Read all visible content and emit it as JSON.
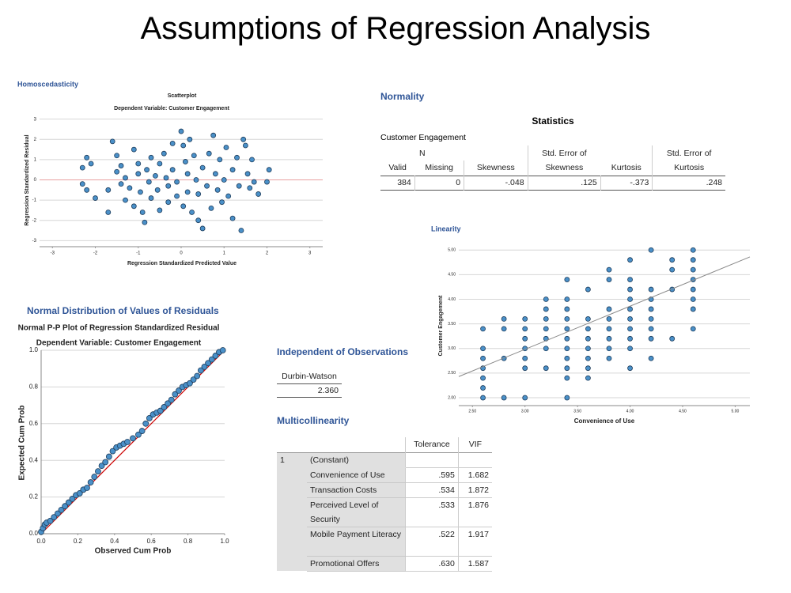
{
  "title": "Assumptions of Regression Analysis",
  "chart_data": [
    {
      "type": "scatter",
      "heading": "Homoscedasticity",
      "title": "Scatterplot",
      "subtitle": "Dependent Variable: Customer Engagement",
      "x_label": "Regression Standardized Predicted Value",
      "y_label": "Regression Standardized Residual",
      "color": "#4a90c8",
      "grid": true,
      "xlim": [
        -3.3,
        3.3
      ],
      "ylim": [
        -3.3,
        3.3
      ],
      "xticks": [
        -3,
        -2,
        -1,
        0,
        1,
        2,
        3
      ],
      "yticks": [
        -3,
        -2,
        -1,
        0,
        1,
        2,
        3
      ],
      "x": [
        -2.3,
        -2.3,
        -2.2,
        -2.1,
        -2.2,
        -2.0,
        -1.7,
        -1.7,
        -1.6,
        -1.5,
        -1.5,
        -1.4,
        -1.4,
        -1.3,
        -1.3,
        -1.2,
        -1.1,
        -1.1,
        -1.0,
        -1.0,
        -0.95,
        -0.9,
        -0.85,
        -0.8,
        -0.75,
        -0.7,
        -0.7,
        -0.6,
        -0.55,
        -0.5,
        -0.5,
        -0.4,
        -0.35,
        -0.3,
        -0.3,
        -0.2,
        -0.2,
        -0.1,
        -0.1,
        0,
        0.05,
        0.05,
        0.1,
        0.15,
        0.15,
        0.2,
        0.25,
        0.3,
        0.35,
        0.4,
        0.4,
        0.5,
        0.5,
        0.6,
        0.65,
        0.7,
        0.75,
        0.8,
        0.85,
        0.9,
        0.95,
        1.0,
        1.05,
        1.1,
        1.2,
        1.2,
        1.3,
        1.35,
        1.4,
        1.45,
        1.5,
        1.55,
        1.6,
        1.65,
        1.7,
        1.8,
        2.0,
        2.05
      ],
      "y": [
        0.6,
        -0.2,
        1.1,
        0.8,
        -0.5,
        -0.9,
        -0.5,
        -1.6,
        1.9,
        1.2,
        0.4,
        0.7,
        -0.2,
        0.1,
        -1.0,
        -0.4,
        1.5,
        -1.3,
        0.8,
        0.3,
        -0.6,
        -1.6,
        -2.1,
        0.5,
        -0.1,
        1.1,
        -0.9,
        0.2,
        -0.5,
        0.8,
        -1.5,
        1.3,
        0.1,
        -0.3,
        -1.1,
        1.8,
        0.5,
        -0.1,
        -0.8,
        2.4,
        1.7,
        -1.3,
        0.9,
        0.3,
        -0.6,
        2.0,
        -1.6,
        1.2,
        0.0,
        -0.7,
        -2.0,
        0.6,
        -2.4,
        -0.3,
        1.3,
        -1.4,
        2.2,
        0.3,
        -0.5,
        1.0,
        -1.1,
        0.0,
        1.6,
        -0.8,
        0.5,
        -1.9,
        1.1,
        -0.3,
        -2.5,
        2.0,
        1.7,
        0.3,
        -0.4,
        1.0,
        -0.1,
        -0.7,
        -0.1,
        0.5
      ]
    },
    {
      "type": "scatter",
      "heading": "Normal Distribution of Values of Residuals",
      "title": "Normal P-P Plot of Regression Standardized Residual",
      "subtitle": "Dependent Variable: Customer Engagement",
      "x_label": "Observed Cum Prob",
      "y_label": "Expected Cum Prob",
      "color": "#4a90c8",
      "grid": true,
      "reference_line": "diagonal",
      "reference_color": "#cc0000",
      "xlim": [
        0,
        1
      ],
      "ylim": [
        0,
        1
      ],
      "xticks": [
        {
          "value": 0,
          "label": "0.0"
        },
        {
          "value": 0.2,
          "label": "0.2"
        },
        {
          "value": 0.4,
          "label": "0.4"
        },
        {
          "value": 0.6,
          "label": "0.6"
        },
        {
          "value": 0.8,
          "label": "0.8"
        },
        {
          "value": 1,
          "label": "1.0"
        }
      ],
      "yticks": [
        {
          "value": 0,
          "label": "0.0"
        },
        {
          "value": 0.2,
          "label": "0.2"
        },
        {
          "value": 0.4,
          "label": "0.4"
        },
        {
          "value": 0.6,
          "label": "0.6"
        },
        {
          "value": 0.8,
          "label": "0.8"
        },
        {
          "value": 1,
          "label": "1.0"
        }
      ],
      "x": [
        0,
        0.01,
        0.02,
        0.03,
        0.05,
        0.07,
        0.09,
        0.11,
        0.13,
        0.15,
        0.17,
        0.19,
        0.21,
        0.23,
        0.25,
        0.27,
        0.29,
        0.31,
        0.33,
        0.35,
        0.37,
        0.39,
        0.41,
        0.43,
        0.45,
        0.47,
        0.5,
        0.53,
        0.55,
        0.57,
        0.59,
        0.61,
        0.63,
        0.65,
        0.67,
        0.69,
        0.71,
        0.73,
        0.75,
        0.77,
        0.79,
        0.81,
        0.83,
        0.85,
        0.87,
        0.89,
        0.91,
        0.93,
        0.95,
        0.97,
        0.99
      ],
      "y": [
        0.01,
        0.03,
        0.05,
        0.06,
        0.07,
        0.09,
        0.11,
        0.13,
        0.15,
        0.17,
        0.19,
        0.21,
        0.22,
        0.24,
        0.25,
        0.28,
        0.31,
        0.34,
        0.37,
        0.39,
        0.42,
        0.45,
        0.47,
        0.48,
        0.49,
        0.5,
        0.52,
        0.54,
        0.56,
        0.6,
        0.63,
        0.65,
        0.66,
        0.67,
        0.69,
        0.71,
        0.73,
        0.76,
        0.78,
        0.8,
        0.81,
        0.82,
        0.84,
        0.86,
        0.89,
        0.91,
        0.93,
        0.95,
        0.97,
        0.99,
        1.0
      ]
    },
    {
      "type": "scatter",
      "heading": "Linearity",
      "x_label": "Convenience of Use",
      "y_label": "Customer Engagement",
      "color": "#4a90c8",
      "grid": true,
      "fit_line": {
        "x": [
          2.37,
          5.14
        ],
        "y": [
          2.43,
          4.86
        ],
        "color": "#888888"
      },
      "xlim": [
        2.37,
        5.14
      ],
      "ylim": [
        1.84,
        5.1
      ],
      "xticks": [
        {
          "value": 2.5,
          "label": "2.50"
        },
        {
          "value": 3,
          "label": "3.00"
        },
        {
          "value": 3.5,
          "label": "3.50"
        },
        {
          "value": 4,
          "label": "4.00"
        },
        {
          "value": 4.5,
          "label": "4.50"
        },
        {
          "value": 5,
          "label": "5.00"
        }
      ],
      "yticks": [
        {
          "value": 2,
          "label": "2.00"
        },
        {
          "value": 2.5,
          "label": "2.50"
        },
        {
          "value": 3,
          "label": "3.00"
        },
        {
          "value": 3.5,
          "label": "3.50"
        },
        {
          "value": 4,
          "label": "4.00"
        },
        {
          "value": 4.5,
          "label": "4.50"
        },
        {
          "value": 5,
          "label": "5.00"
        }
      ],
      "x": [
        2.6,
        2.6,
        2.6,
        2.6,
        2.6,
        2.6,
        2.6,
        2.8,
        2.8,
        2.8,
        2.8,
        3.0,
        3.0,
        3.0,
        3.0,
        3.0,
        3.0,
        3.0,
        3.2,
        3.2,
        3.2,
        3.2,
        3.2,
        3.2,
        3.2,
        3.4,
        3.4,
        3.4,
        3.4,
        3.4,
        3.4,
        3.4,
        3.4,
        3.4,
        3.4,
        3.4,
        3.6,
        3.6,
        3.6,
        3.6,
        3.6,
        3.6,
        3.6,
        3.6,
        3.8,
        3.8,
        3.8,
        3.8,
        3.8,
        3.8,
        3.8,
        3.8,
        4.0,
        4.0,
        4.0,
        4.0,
        4.0,
        4.0,
        4.0,
        4.0,
        4.0,
        4.0,
        4.2,
        4.2,
        4.2,
        4.2,
        4.2,
        4.2,
        4.2,
        4.2,
        4.4,
        4.4,
        4.4,
        4.4,
        4.6,
        4.6,
        4.6,
        4.6,
        4.6,
        4.6,
        4.6,
        4.6
      ],
      "y": [
        3.4,
        3.0,
        2.8,
        2.6,
        2.4,
        2.2,
        2.0,
        3.6,
        3.4,
        2.8,
        2.0,
        3.6,
        3.4,
        3.2,
        3.0,
        2.8,
        2.6,
        2.0,
        4.0,
        3.8,
        3.6,
        3.4,
        3.2,
        3.0,
        2.6,
        4.4,
        4.0,
        3.8,
        3.6,
        3.4,
        3.2,
        3.0,
        2.8,
        2.6,
        2.4,
        2.0,
        4.2,
        3.6,
        3.4,
        3.2,
        3.0,
        2.8,
        2.6,
        2.4,
        4.6,
        4.4,
        3.8,
        3.6,
        3.4,
        3.2,
        3.0,
        2.8,
        4.8,
        4.4,
        4.2,
        4.0,
        3.8,
        3.6,
        3.4,
        3.2,
        3.0,
        2.6,
        5.0,
        4.2,
        4.0,
        3.8,
        3.6,
        3.4,
        3.2,
        2.8,
        4.8,
        4.6,
        4.2,
        3.2,
        5.0,
        4.8,
        4.6,
        4.4,
        4.2,
        4.0,
        3.8,
        3.4
      ]
    }
  ],
  "normality": {
    "heading": "Normality",
    "title": "Statistics",
    "subtitle": "Customer Engagement",
    "group_headers": [
      "N",
      "Std. Error of",
      "Std. Error of"
    ],
    "headers": [
      "Valid",
      "Missing",
      "Skewness",
      "Skewness",
      "Kurtosis",
      "Kurtosis"
    ],
    "rows": [
      [
        "384",
        "0",
        "-.048",
        ".125",
        "-.373",
        ".248"
      ]
    ]
  },
  "independence": {
    "heading": "Independent of Observations",
    "headers": [
      "Durbin-Watson"
    ],
    "rows": [
      [
        "2.360"
      ]
    ]
  },
  "multicollinearity": {
    "heading": "Multicollinearity",
    "headers": [
      "Tolerance",
      "VIF"
    ],
    "model": "1",
    "rows": [
      [
        "(Constant)",
        "",
        ""
      ],
      [
        "Convenience of Use",
        ".595",
        "1.682"
      ],
      [
        "Transaction Costs",
        ".534",
        "1.872"
      ],
      [
        "Perceived Level of Security",
        ".533",
        "1.876"
      ],
      [
        "Mobile Payment Literacy",
        ".522",
        "1.917"
      ],
      [
        "Promotional Offers",
        ".630",
        "1.587"
      ]
    ]
  }
}
